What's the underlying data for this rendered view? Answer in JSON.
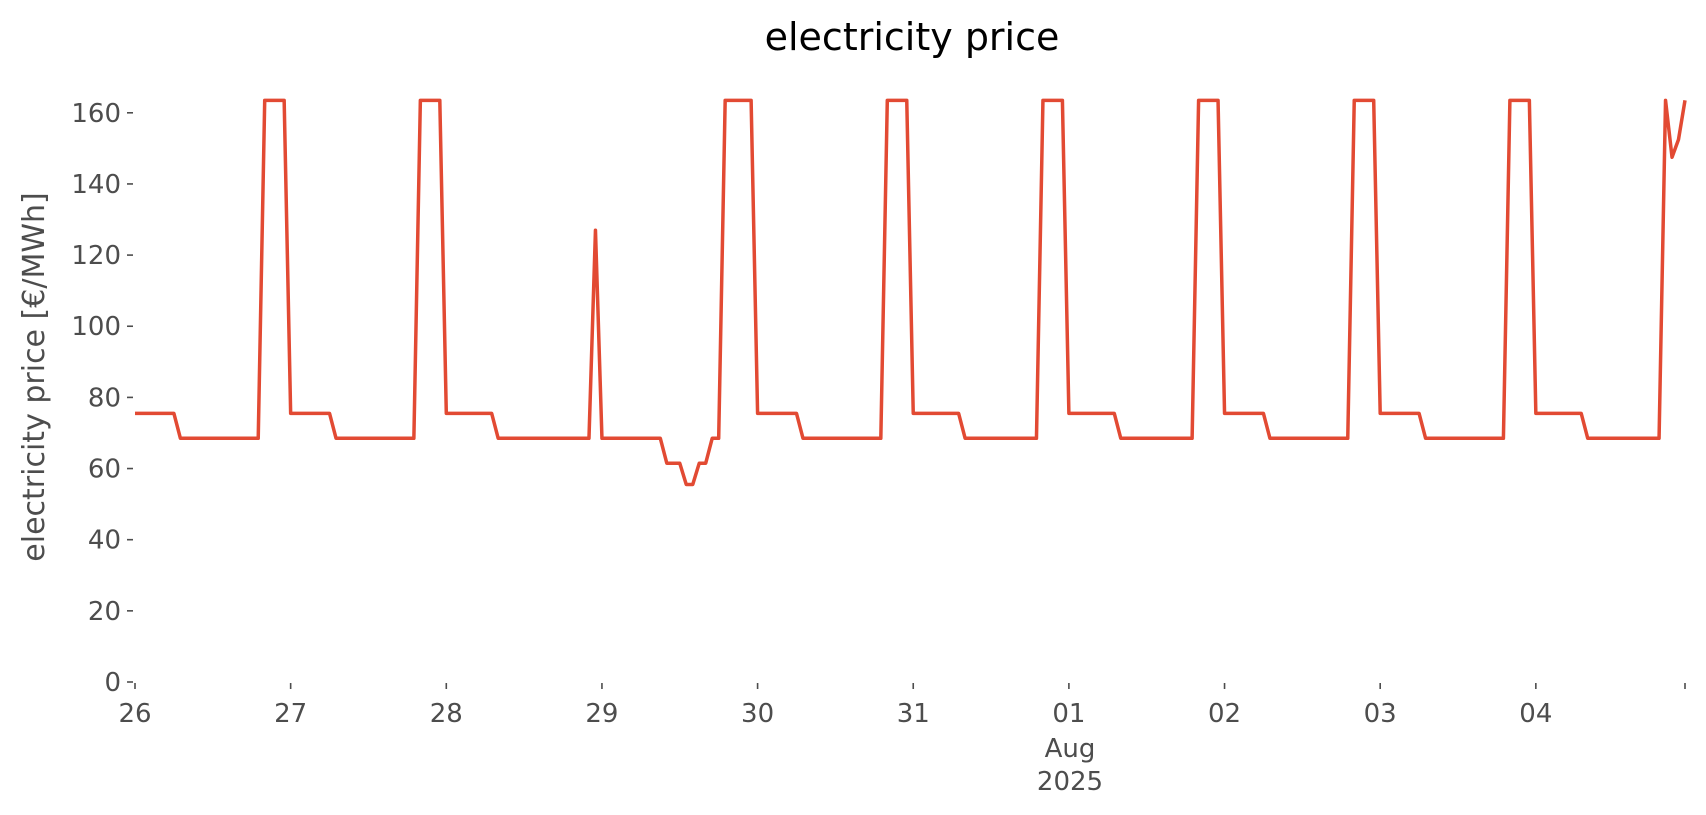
{
  "chart_data": {
    "type": "line",
    "title": "electricity price",
    "xlabel": "",
    "ylabel": "electricity price [€/MWh]",
    "ylim": [
      0,
      165
    ],
    "yticks": [
      0,
      20,
      40,
      60,
      80,
      100,
      120,
      140,
      160
    ],
    "xlim": [
      "2025-07-26T00:00",
      "2025-08-04T23:00"
    ],
    "xticks": [
      {
        "date": "2025-07-26",
        "label": "26"
      },
      {
        "date": "2025-07-27",
        "label": "27"
      },
      {
        "date": "2025-07-28",
        "label": "28"
      },
      {
        "date": "2025-07-29",
        "label": "29"
      },
      {
        "date": "2025-07-30",
        "label": "30"
      },
      {
        "date": "2025-07-31",
        "label": "31"
      },
      {
        "date": "2025-08-01",
        "label": "01"
      },
      {
        "date": "2025-08-02",
        "label": "02"
      },
      {
        "date": "2025-08-03",
        "label": "03"
      },
      {
        "date": "2025-08-04",
        "label": "04"
      }
    ],
    "x_axis_extra_labels": [
      "Aug",
      "2025"
    ],
    "grid": false,
    "series": [
      {
        "color": "#e24a33",
        "points": [
          [
            "2025-07-26T00:00",
            75.5
          ],
          [
            "2025-07-26T06:00",
            75.5
          ],
          [
            "2025-07-26T07:00",
            68.5
          ],
          [
            "2025-07-26T19:00",
            68.5
          ],
          [
            "2025-07-26T20:00",
            163.5
          ],
          [
            "2025-07-26T23:00",
            163.5
          ],
          [
            "2025-07-27T00:00",
            75.5
          ],
          [
            "2025-07-27T06:00",
            75.5
          ],
          [
            "2025-07-27T07:00",
            68.5
          ],
          [
            "2025-07-27T19:00",
            68.5
          ],
          [
            "2025-07-27T20:00",
            163.5
          ],
          [
            "2025-07-27T23:00",
            163.5
          ],
          [
            "2025-07-28T00:00",
            75.5
          ],
          [
            "2025-07-28T07:00",
            75.5
          ],
          [
            "2025-07-28T08:00",
            68.5
          ],
          [
            "2025-07-28T22:00",
            68.5
          ],
          [
            "2025-07-28T23:00",
            127
          ],
          [
            "2025-07-29T00:00",
            68.5
          ],
          [
            "2025-07-29T09:00",
            68.5
          ],
          [
            "2025-07-29T10:00",
            61.5
          ],
          [
            "2025-07-29T12:00",
            61.5
          ],
          [
            "2025-07-29T13:00",
            55.5
          ],
          [
            "2025-07-29T14:00",
            55.5
          ],
          [
            "2025-07-29T15:00",
            61.5
          ],
          [
            "2025-07-29T16:00",
            61.5
          ],
          [
            "2025-07-29T17:00",
            68.5
          ],
          [
            "2025-07-29T18:00",
            68.5
          ],
          [
            "2025-07-29T19:00",
            163.5
          ],
          [
            "2025-07-29T23:00",
            163.5
          ],
          [
            "2025-07-30T00:00",
            75.5
          ],
          [
            "2025-07-30T06:00",
            75.5
          ],
          [
            "2025-07-30T07:00",
            68.5
          ],
          [
            "2025-07-30T19:00",
            68.5
          ],
          [
            "2025-07-30T20:00",
            163.5
          ],
          [
            "2025-07-30T23:00",
            163.5
          ],
          [
            "2025-07-31T00:00",
            75.5
          ],
          [
            "2025-07-31T07:00",
            75.5
          ],
          [
            "2025-07-31T08:00",
            68.5
          ],
          [
            "2025-07-31T19:00",
            68.5
          ],
          [
            "2025-07-31T20:00",
            163.5
          ],
          [
            "2025-07-31T23:00",
            163.5
          ],
          [
            "2025-08-01T00:00",
            75.5
          ],
          [
            "2025-08-01T07:00",
            75.5
          ],
          [
            "2025-08-01T08:00",
            68.5
          ],
          [
            "2025-08-01T19:00",
            68.5
          ],
          [
            "2025-08-01T20:00",
            163.5
          ],
          [
            "2025-08-01T23:00",
            163.5
          ],
          [
            "2025-08-02T00:00",
            75.5
          ],
          [
            "2025-08-02T06:00",
            75.5
          ],
          [
            "2025-08-02T07:00",
            68.5
          ],
          [
            "2025-08-02T19:00",
            68.5
          ],
          [
            "2025-08-02T20:00",
            163.5
          ],
          [
            "2025-08-02T23:00",
            163.5
          ],
          [
            "2025-08-03T00:00",
            75.5
          ],
          [
            "2025-08-03T06:00",
            75.5
          ],
          [
            "2025-08-03T07:00",
            68.5
          ],
          [
            "2025-08-03T19:00",
            68.5
          ],
          [
            "2025-08-03T20:00",
            163.5
          ],
          [
            "2025-08-03T23:00",
            163.5
          ],
          [
            "2025-08-04T00:00",
            75.5
          ],
          [
            "2025-08-04T07:00",
            75.5
          ],
          [
            "2025-08-04T08:00",
            68.5
          ],
          [
            "2025-08-04T19:00",
            68.5
          ],
          [
            "2025-08-04T20:00",
            163.5
          ],
          [
            "2025-08-04T21:00",
            147.5
          ],
          [
            "2025-08-04T22:00",
            152.5
          ],
          [
            "2025-08-04T23:00",
            163.5
          ]
        ]
      }
    ]
  }
}
